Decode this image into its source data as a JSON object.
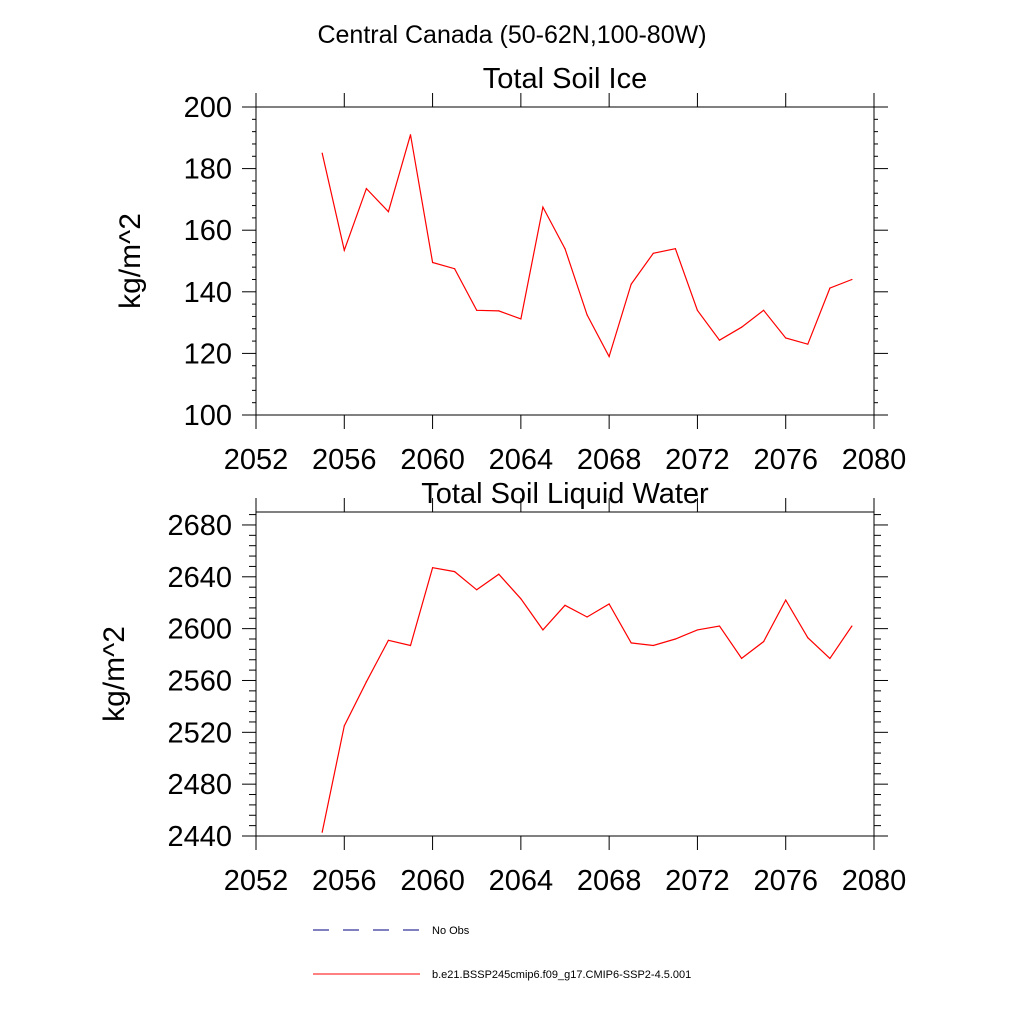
{
  "figure": {
    "suptitle": "Central Canada (50-62N,100-80W)",
    "legend": [
      {
        "label": "No Obs",
        "color": "#000080",
        "style": "dashed"
      },
      {
        "label": "b.e21.BSSP245cmip6.f09_g17.CMIP6-SSP2-4.5.001",
        "color": "#ff0000",
        "style": "solid"
      }
    ]
  },
  "chart_data": [
    {
      "type": "line",
      "title": "Total Soil Ice",
      "xlabel": "",
      "ylabel": "kg/m^2",
      "xlim": [
        2052,
        2080
      ],
      "ylim": [
        100,
        200
      ],
      "xticks": [
        2052,
        2056,
        2060,
        2064,
        2068,
        2072,
        2076,
        2080
      ],
      "yticks": [
        100,
        120,
        140,
        160,
        180,
        200
      ],
      "grid": false,
      "series": [
        {
          "color": "#ff0000",
          "x": [
            2055,
            2056,
            2057,
            2058,
            2059,
            2060,
            2061,
            2062,
            2063,
            2064,
            2065,
            2066,
            2067,
            2068,
            2069,
            2070,
            2071,
            2072,
            2073,
            2074,
            2075,
            2076,
            2077,
            2078,
            2079
          ],
          "y": [
            185,
            153.5,
            173.5,
            166,
            191,
            149.5,
            147.5,
            134,
            133.8,
            131.2,
            167.5,
            154,
            132.5,
            119,
            142.5,
            152.5,
            154,
            134,
            124.3,
            128.5,
            134,
            125,
            123,
            141.2,
            144
          ]
        }
      ]
    },
    {
      "type": "line",
      "title": "Total Soil Liquid Water",
      "xlabel": "",
      "ylabel": "kg/m^2",
      "xlim": [
        2052,
        2080
      ],
      "ylim": [
        2440,
        2690
      ],
      "xticks": [
        2052,
        2056,
        2060,
        2064,
        2068,
        2072,
        2076,
        2080
      ],
      "yticks": [
        2440,
        2480,
        2520,
        2560,
        2600,
        2640,
        2680
      ],
      "grid": false,
      "series": [
        {
          "color": "#ff0000",
          "x": [
            2055,
            2056,
            2057,
            2058,
            2059,
            2060,
            2061,
            2062,
            2063,
            2064,
            2065,
            2066,
            2067,
            2068,
            2069,
            2070,
            2071,
            2072,
            2073,
            2074,
            2075,
            2076,
            2077,
            2078,
            2079
          ],
          "y": [
            2443,
            2525,
            2559,
            2591,
            2587,
            2647,
            2644,
            2630,
            2642,
            2623,
            2599,
            2618,
            2609,
            2619,
            2589,
            2587,
            2592,
            2599,
            2602,
            2577,
            2590,
            2622,
            2593,
            2577,
            2602
          ]
        }
      ]
    }
  ]
}
